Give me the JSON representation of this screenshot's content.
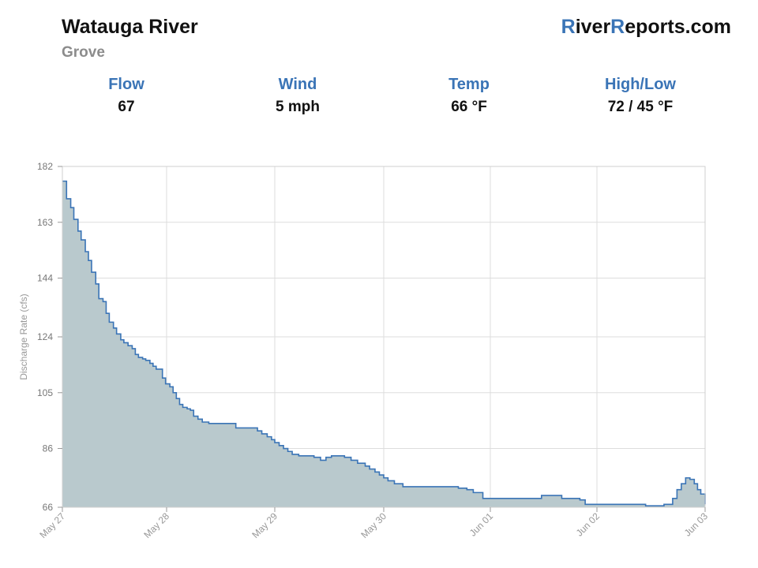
{
  "header": {
    "title": "Watauga River",
    "subtitle": "Grove",
    "brand": {
      "r1": "R",
      "p1": "iver",
      "r2": "R",
      "p2": "eports.com"
    }
  },
  "stats": [
    {
      "label": "Flow",
      "value": "67"
    },
    {
      "label": "Wind",
      "value": "5 mph"
    },
    {
      "label": "Temp",
      "value": "66 °F"
    },
    {
      "label": "High/Low",
      "value": "72 / 45 °F"
    }
  ],
  "colors": {
    "accent": "#3a74b6",
    "line": "#3a74b6",
    "fill": "#b9c9cd",
    "grid": "#dddddd"
  },
  "chart_data": {
    "type": "area",
    "ylabel": "Discharge Rate (cfs)",
    "y_ticks": [
      66,
      86,
      105,
      124,
      144,
      163,
      182
    ],
    "ylim": [
      66,
      182
    ],
    "xlim": [
      0,
      7
    ],
    "x_ticks": [
      {
        "day": 0,
        "label": "May 27"
      },
      {
        "day": 1,
        "label": "May 28"
      },
      {
        "day": 2,
        "label": "May 29"
      },
      {
        "day": 3,
        "label": "May 30"
      },
      {
        "day": 4,
        "label": "Jun 01"
      },
      {
        "day": 5,
        "label": "Jun 02"
      },
      {
        "day": 6,
        "label": "Jun 03"
      }
    ],
    "x_day_dates": [
      "May 27",
      "May 28",
      "May 29",
      "May 30",
      "Jun 01",
      "Jun 02",
      "Jun 03"
    ],
    "grid": true,
    "series": [
      {
        "step": true,
        "points": [
          [
            0.0,
            177
          ],
          [
            0.04,
            171
          ],
          [
            0.08,
            168
          ],
          [
            0.11,
            164
          ],
          [
            0.15,
            160
          ],
          [
            0.18,
            157
          ],
          [
            0.22,
            153
          ],
          [
            0.25,
            150
          ],
          [
            0.28,
            146
          ],
          [
            0.32,
            142
          ],
          [
            0.35,
            137
          ],
          [
            0.39,
            136
          ],
          [
            0.42,
            132
          ],
          [
            0.45,
            129
          ],
          [
            0.49,
            127
          ],
          [
            0.52,
            125
          ],
          [
            0.56,
            123
          ],
          [
            0.59,
            122
          ],
          [
            0.63,
            121
          ],
          [
            0.67,
            120
          ],
          [
            0.7,
            118
          ],
          [
            0.73,
            117
          ],
          [
            0.77,
            116.5
          ],
          [
            0.8,
            116
          ],
          [
            0.84,
            115
          ],
          [
            0.87,
            114
          ],
          [
            0.9,
            113
          ],
          [
            0.96,
            110
          ],
          [
            0.99,
            108
          ],
          [
            1.03,
            107
          ],
          [
            1.06,
            105
          ],
          [
            1.09,
            103
          ],
          [
            1.12,
            101
          ],
          [
            1.15,
            100
          ],
          [
            1.19,
            99.5
          ],
          [
            1.22,
            99
          ],
          [
            1.25,
            97
          ],
          [
            1.29,
            96
          ],
          [
            1.33,
            95
          ],
          [
            1.39,
            94.5
          ],
          [
            1.64,
            93
          ],
          [
            1.79,
            93
          ],
          [
            1.84,
            92
          ],
          [
            1.88,
            91
          ],
          [
            1.93,
            90
          ],
          [
            1.97,
            89
          ],
          [
            2.0,
            88
          ],
          [
            2.04,
            87
          ],
          [
            2.08,
            86
          ],
          [
            2.12,
            85
          ],
          [
            2.16,
            84
          ],
          [
            2.22,
            83.5
          ],
          [
            2.3,
            83.5
          ],
          [
            2.36,
            83
          ],
          [
            2.42,
            82
          ],
          [
            2.47,
            83
          ],
          [
            2.52,
            83.5
          ],
          [
            2.64,
            83
          ],
          [
            2.7,
            82
          ],
          [
            2.76,
            81
          ],
          [
            2.83,
            80
          ],
          [
            2.87,
            79
          ],
          [
            2.92,
            78
          ],
          [
            2.96,
            77
          ],
          [
            3.0,
            76
          ],
          [
            3.04,
            75
          ],
          [
            3.1,
            74
          ],
          [
            3.18,
            73
          ],
          [
            3.28,
            73
          ],
          [
            3.63,
            73
          ],
          [
            3.7,
            72.5
          ],
          [
            3.78,
            72
          ],
          [
            3.84,
            71
          ],
          [
            3.93,
            69
          ],
          [
            4.06,
            69
          ],
          [
            4.22,
            69
          ],
          [
            4.39,
            69
          ],
          [
            4.48,
            70
          ],
          [
            4.63,
            70
          ],
          [
            4.67,
            69
          ],
          [
            4.84,
            68.5
          ],
          [
            4.89,
            67
          ],
          [
            5.08,
            67
          ],
          [
            5.2,
            67
          ],
          [
            5.3,
            67
          ],
          [
            5.38,
            67
          ],
          [
            5.45,
            66.5
          ],
          [
            5.52,
            66.5
          ],
          [
            5.62,
            67
          ],
          [
            5.7,
            69
          ],
          [
            5.74,
            72
          ],
          [
            5.78,
            74
          ],
          [
            5.82,
            76
          ],
          [
            5.86,
            75.5
          ],
          [
            5.9,
            74
          ],
          [
            5.93,
            72
          ],
          [
            5.96,
            70.5
          ],
          [
            6.0,
            69.5
          ],
          [
            6.04,
            68.5
          ],
          [
            6.08,
            67.5
          ],
          [
            6.12,
            67
          ]
        ]
      }
    ]
  }
}
